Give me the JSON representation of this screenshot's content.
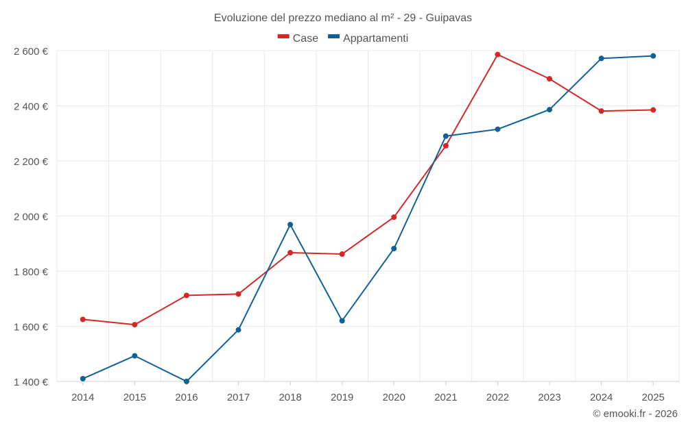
{
  "chart_data": {
    "type": "line",
    "title": "Evoluzione del prezzo mediano al m² - 29 - Guipavas",
    "categories": [
      "2014",
      "2015",
      "2016",
      "2017",
      "2018",
      "2019",
      "2020",
      "2021",
      "2022",
      "2023",
      "2024",
      "2025"
    ],
    "series": [
      {
        "name": "Case",
        "color": "#d62728",
        "values": [
          1625,
          1606,
          1712,
          1717,
          1867,
          1862,
          1996,
          2255,
          2586,
          2498,
          2381,
          2385
        ]
      },
      {
        "name": "Appartamenti",
        "color": "#0f6196",
        "values": [
          1410,
          1493,
          1400,
          1587,
          1969,
          1620,
          1882,
          2290,
          2315,
          2386,
          2572,
          2581
        ]
      }
    ],
    "ylim": [
      1400,
      2600
    ],
    "yticks": [
      1400,
      1600,
      1800,
      2000,
      2200,
      2400,
      2600
    ],
    "ytick_labels": [
      "1 400 €",
      "1 600 €",
      "1 800 €",
      "2 000 €",
      "2 200 €",
      "2 400 €",
      "2 600 €"
    ],
    "xlabel": "",
    "ylabel": "",
    "grid": true,
    "legend": "top-center"
  },
  "credit": "© emooki.fr - 2026"
}
